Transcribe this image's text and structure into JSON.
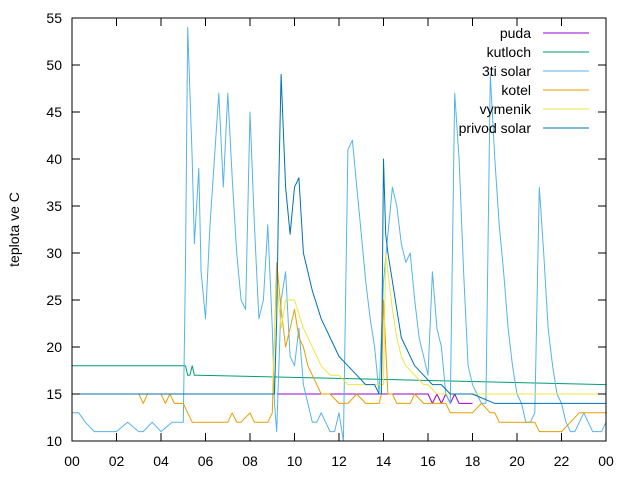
{
  "chart_data": {
    "type": "line",
    "title": "",
    "xlabel": "",
    "ylabel": "teplota ve C",
    "xlim": [
      0,
      24
    ],
    "ylim": [
      10,
      55
    ],
    "x_ticks": [
      "00",
      "02",
      "04",
      "06",
      "08",
      "10",
      "12",
      "14",
      "16",
      "18",
      "20",
      "22",
      "00"
    ],
    "y_ticks": [
      10,
      15,
      20,
      25,
      30,
      35,
      40,
      45,
      50,
      55
    ],
    "grid": false,
    "legend": "top-right",
    "series": [
      {
        "name": "puda",
        "color": "#9400d3",
        "x": [
          9.2,
          16.0,
          16.2,
          16.4,
          16.6,
          16.8,
          17.0,
          17.2,
          17.4,
          17.6,
          18.0
        ],
        "y": [
          15,
          15,
          14,
          15,
          14,
          15,
          14,
          15,
          14,
          14,
          14
        ]
      },
      {
        "name": "kutloch",
        "color": "#009e73",
        "x": [
          0,
          5.1,
          5.2,
          5.3,
          5.4,
          5.5,
          5.6,
          5.7,
          24
        ],
        "y": [
          18,
          18,
          17,
          17,
          18,
          17,
          17,
          17,
          16
        ]
      },
      {
        "name": "3ti solar",
        "color": "#56b4e9",
        "x": [
          0,
          0.3,
          0.6,
          1.0,
          2.0,
          2.5,
          3.0,
          3.2,
          3.6,
          4.0,
          4.5,
          4.9,
          5.0,
          5.1,
          5.2,
          5.4,
          5.5,
          5.7,
          5.8,
          6.0,
          6.2,
          6.4,
          6.6,
          6.8,
          7.0,
          7.2,
          7.4,
          7.6,
          7.8,
          8.0,
          8.2,
          8.4,
          8.6,
          8.8,
          9.0,
          9.1,
          9.2,
          9.4,
          9.6,
          9.8,
          10.0,
          10.2,
          10.4,
          10.6,
          10.8,
          11.0,
          11.2,
          11.4,
          11.6,
          11.8,
          12.0,
          12.2,
          12.4,
          12.6,
          12.8,
          13.0,
          13.2,
          13.4,
          13.6,
          13.8,
          14.0,
          14.2,
          14.4,
          14.6,
          14.8,
          15.0,
          15.2,
          15.4,
          15.6,
          15.8,
          16.0,
          16.2,
          16.4,
          16.6,
          16.8,
          17.0,
          17.2,
          17.4,
          17.6,
          17.8,
          18.0,
          18.2,
          18.4,
          18.6,
          18.8,
          19.0,
          19.2,
          19.4,
          19.6,
          19.8,
          20.0,
          20.2,
          20.4,
          20.6,
          20.8,
          21.0,
          21.2,
          21.4,
          21.6,
          21.8,
          22.0,
          22.2,
          22.4,
          22.6,
          22.8,
          23.0,
          23.2,
          23.4,
          23.6,
          23.8,
          24.0
        ],
        "y": [
          13,
          13,
          12,
          11,
          11,
          12,
          11,
          11,
          12,
          11,
          12,
          12,
          12,
          29,
          54,
          40,
          31,
          39,
          28,
          23,
          33,
          40,
          47,
          37,
          47,
          38,
          30,
          25,
          24,
          45,
          33,
          23,
          25,
          33,
          22,
          14,
          11,
          25,
          28,
          19,
          18,
          22,
          16,
          14,
          12,
          12,
          13,
          12,
          11,
          11,
          13,
          10,
          41,
          42,
          37,
          32,
          27,
          23,
          20,
          15,
          27,
          32,
          37,
          35,
          31,
          29,
          30,
          25,
          21,
          19,
          17,
          28,
          22,
          20,
          15,
          14,
          47,
          40,
          28,
          18,
          16,
          15,
          14,
          14,
          49,
          40,
          33,
          28,
          22,
          18,
          15,
          14,
          12,
          12,
          13,
          37,
          30,
          22,
          18,
          15,
          14,
          12,
          11,
          11,
          12,
          13,
          12,
          11,
          11,
          11,
          12
        ]
      },
      {
        "name": "kotel",
        "color": "#e69f00",
        "x": [
          0,
          3.0,
          3.2,
          3.4,
          4.0,
          4.2,
          4.4,
          4.6,
          5.0,
          5.2,
          5.4,
          5.6,
          6.0,
          6.4,
          7.0,
          7.2,
          7.4,
          7.6,
          8.0,
          8.2,
          8.4,
          8.6,
          8.8,
          9.0,
          9.2,
          9.4,
          9.6,
          9.8,
          10.0,
          10.2,
          10.4,
          10.6,
          10.8,
          11.0,
          11.2,
          11.4,
          11.6,
          12.0,
          12.4,
          12.8,
          13.2,
          13.6,
          13.8,
          13.9,
          14.0,
          14.1,
          14.2,
          14.4,
          14.6,
          14.8,
          15.0,
          15.2,
          15.4,
          15.8,
          16.0,
          16.4,
          16.8,
          17.0,
          17.2,
          17.6,
          18.0,
          18.4,
          18.8,
          19.0,
          19.2,
          19.6,
          20.0,
          20.4,
          20.8,
          21.0,
          21.2,
          21.6,
          22.0,
          22.4,
          22.8,
          23.0,
          23.4,
          23.8,
          24.0
        ],
        "y": [
          15,
          15,
          14,
          15,
          15,
          14,
          15,
          14,
          14,
          13,
          12,
          12,
          12,
          12,
          12,
          13,
          12,
          12,
          13,
          12,
          12,
          12,
          12,
          13,
          29,
          24,
          20,
          22,
          24,
          21,
          20,
          18,
          17,
          16,
          15,
          15,
          15,
          14,
          14,
          15,
          14,
          14,
          14,
          15,
          25,
          20,
          15,
          15,
          14,
          14,
          14,
          14,
          15,
          14,
          14,
          14,
          14,
          13,
          13,
          13,
          13,
          14,
          13,
          13,
          12,
          12,
          12,
          12,
          12,
          11,
          11,
          11,
          11,
          12,
          13,
          13,
          13,
          13,
          13
        ]
      },
      {
        "name": "vymenik",
        "color": "#f0e442",
        "x": [
          0,
          3.0,
          5.0,
          9.0,
          9.2,
          9.4,
          9.6,
          9.8,
          10.0,
          10.4,
          10.8,
          11.2,
          11.6,
          12.0,
          12.4,
          12.8,
          13.2,
          13.6,
          13.8,
          14.0,
          14.1,
          14.2,
          14.4,
          14.6,
          14.8,
          15.0,
          15.4,
          15.8,
          16.0,
          16.4,
          16.8,
          17.0,
          17.4,
          17.8,
          18.0,
          18.4,
          19.0,
          20.0,
          21.0,
          22.0,
          23.0,
          24.0
        ],
        "y": [
          15,
          15,
          15,
          15,
          27,
          22,
          25,
          25,
          25,
          22,
          20,
          18,
          17,
          17,
          16,
          16,
          16,
          16,
          16,
          16,
          30,
          28,
          24,
          21,
          19,
          18,
          17,
          16,
          16,
          15,
          15,
          15,
          15,
          15,
          15,
          15,
          15,
          15,
          15,
          15,
          15,
          15
        ]
      },
      {
        "name": "privod solar",
        "color": "#0072b2",
        "x": [
          0,
          4.0,
          5.0,
          9.0,
          9.1,
          9.2,
          9.3,
          9.4,
          9.6,
          9.8,
          10.0,
          10.2,
          10.4,
          10.8,
          11.2,
          11.6,
          12.0,
          12.4,
          12.8,
          13.2,
          13.6,
          13.8,
          13.9,
          14.0,
          14.1,
          14.2,
          14.4,
          14.6,
          14.8,
          15.0,
          15.4,
          15.8,
          16.2,
          16.6,
          17.0,
          17.6,
          18.0,
          19.0,
          20.0,
          21.0,
          22.0,
          23.0,
          24.0
        ],
        "y": [
          15,
          15,
          15,
          15,
          15,
          23,
          38,
          49,
          37,
          32,
          37,
          38,
          30,
          26,
          23,
          21,
          19,
          18,
          17,
          16,
          16,
          15,
          15,
          40,
          32,
          30,
          27,
          24,
          21,
          20,
          18,
          17,
          16,
          16,
          15,
          15,
          15,
          14,
          14,
          14,
          14,
          14,
          14
        ]
      }
    ]
  }
}
